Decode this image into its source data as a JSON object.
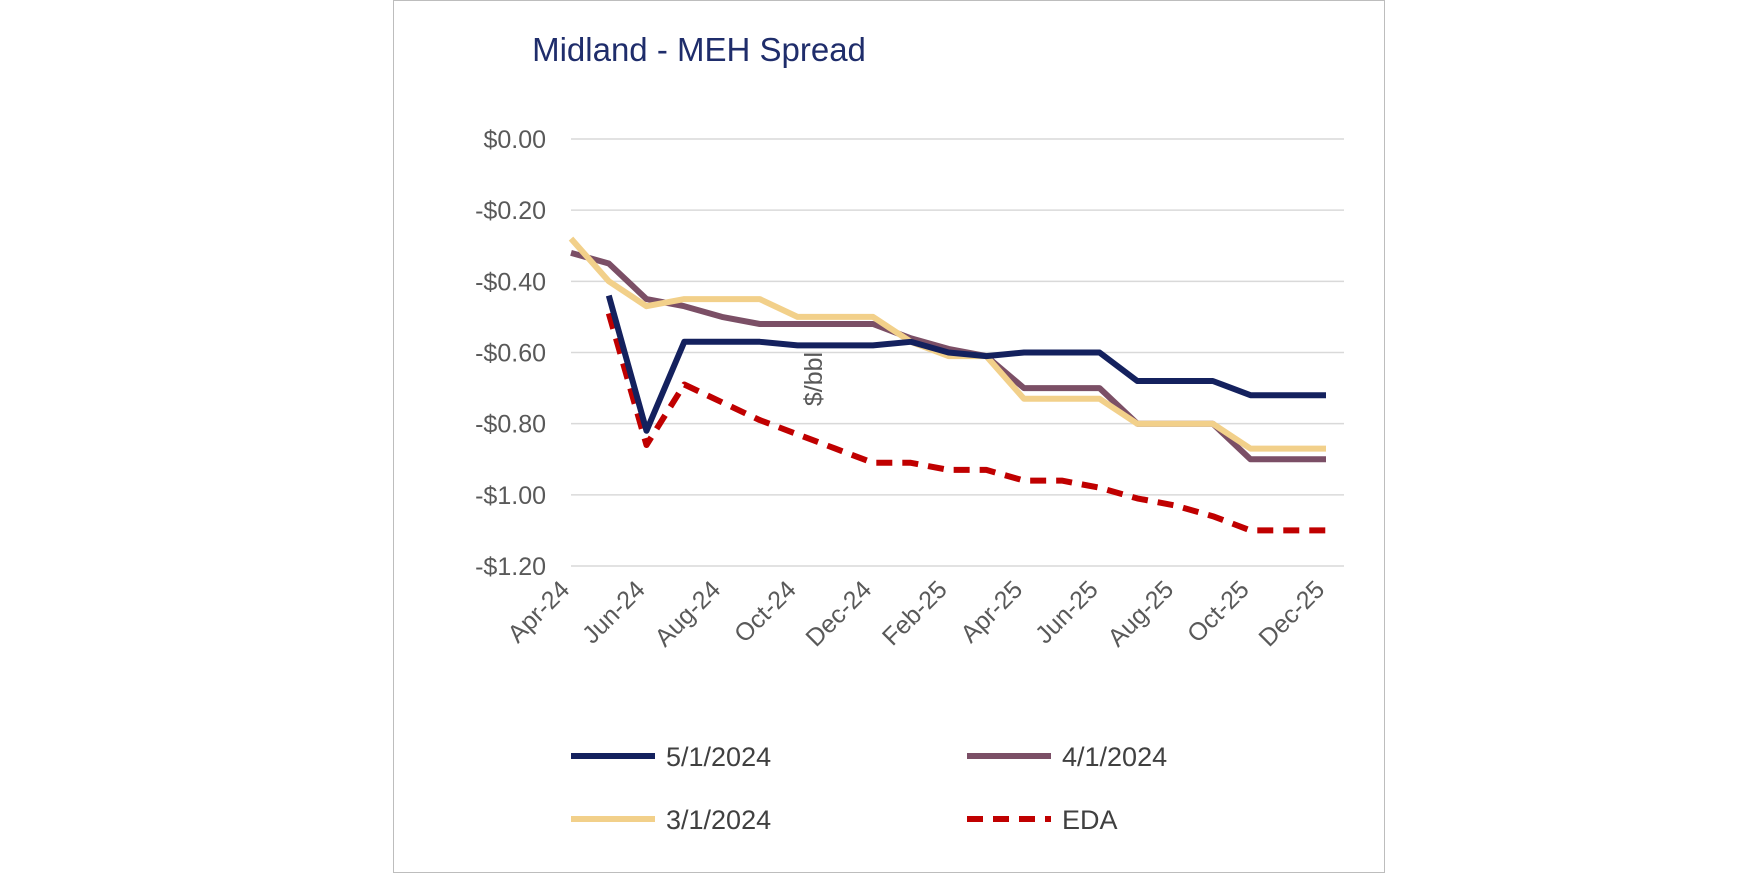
{
  "chart_data": {
    "type": "line",
    "title": "Midland - MEH Spread",
    "xlabel": "",
    "ylabel": "$/bbl",
    "x": [
      "Apr-24",
      "May-24",
      "Jun-24",
      "Jul-24",
      "Aug-24",
      "Sep-24",
      "Oct-24",
      "Nov-24",
      "Dec-24",
      "Jan-25",
      "Feb-25",
      "Mar-25",
      "Apr-25",
      "May-25",
      "Jun-25",
      "Jul-25",
      "Aug-25",
      "Sep-25",
      "Oct-25",
      "Nov-25",
      "Dec-25"
    ],
    "x_tick_labels": [
      "Apr-24",
      "Jun-24",
      "Aug-24",
      "Oct-24",
      "Dec-24",
      "Feb-25",
      "Apr-25",
      "Jun-25",
      "Aug-25",
      "Oct-25",
      "Dec-25"
    ],
    "y_tick_labels": [
      "$0.00",
      "-$0.20",
      "-$0.40",
      "-$0.60",
      "-$0.80",
      "-$1.00",
      "-$1.20"
    ],
    "ylim": [
      -1.2,
      0.0
    ],
    "grid": true,
    "legend_position": "bottom",
    "series": [
      {
        "name": "5/1/2024",
        "color": "#14215e",
        "dash": false,
        "values": [
          null,
          -0.44,
          -0.82,
          -0.57,
          -0.57,
          -0.57,
          -0.58,
          -0.58,
          -0.58,
          -0.57,
          -0.6,
          -0.61,
          -0.6,
          -0.6,
          -0.6,
          -0.68,
          -0.68,
          -0.68,
          -0.72,
          -0.72,
          -0.72
        ]
      },
      {
        "name": "4/1/2024",
        "color": "#7b4f66",
        "dash": false,
        "values": [
          -0.32,
          -0.35,
          -0.45,
          -0.47,
          -0.5,
          -0.52,
          -0.52,
          -0.52,
          -0.52,
          -0.56,
          -0.59,
          -0.61,
          -0.7,
          -0.7,
          -0.7,
          -0.8,
          -0.8,
          -0.8,
          -0.9,
          -0.9,
          -0.9
        ]
      },
      {
        "name": "3/1/2024",
        "color": "#f2d08a",
        "dash": false,
        "values": [
          -0.28,
          -0.4,
          -0.47,
          -0.45,
          -0.45,
          -0.45,
          -0.5,
          -0.5,
          -0.5,
          -0.57,
          -0.61,
          -0.61,
          -0.73,
          -0.73,
          -0.73,
          -0.8,
          -0.8,
          -0.8,
          -0.87,
          -0.87,
          -0.87
        ]
      },
      {
        "name": "EDA",
        "color": "#c00000",
        "dash": true,
        "values": [
          null,
          -0.49,
          -0.86,
          -0.69,
          -0.74,
          -0.79,
          -0.83,
          -0.87,
          -0.91,
          -0.91,
          -0.93,
          -0.93,
          -0.96,
          -0.96,
          -0.98,
          -1.01,
          -1.03,
          -1.06,
          -1.1,
          -1.1,
          -1.1
        ]
      }
    ]
  }
}
